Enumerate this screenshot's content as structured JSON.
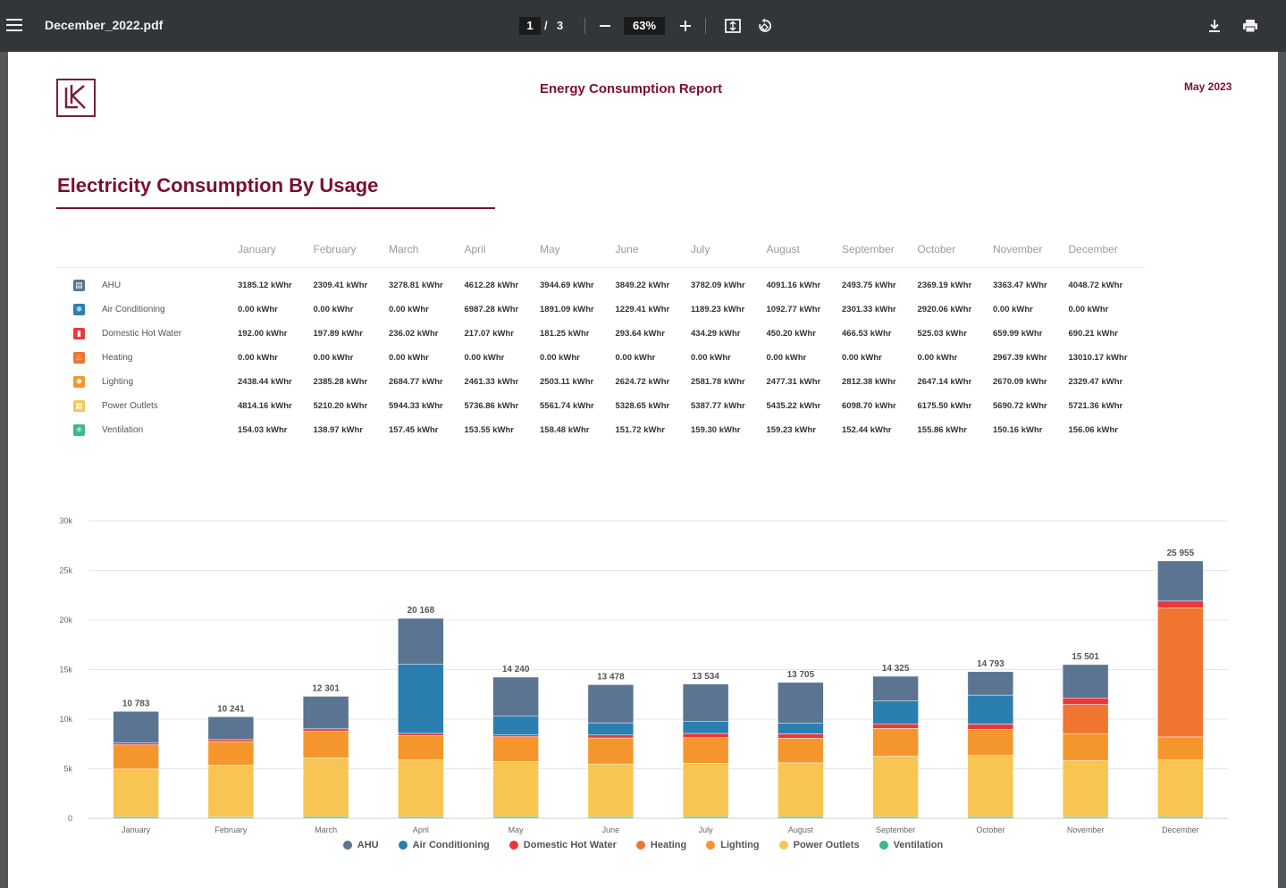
{
  "viewer": {
    "file_name": "December_2022.pdf",
    "current_page": "1",
    "page_sep": "/",
    "total_pages": "3",
    "zoom": "63%",
    "icons": [
      "menu-icon",
      "minus-icon",
      "plus-icon",
      "fit-page-icon",
      "rotate-icon",
      "download-icon",
      "print-icon"
    ]
  },
  "report": {
    "title": "Energy Consumption Report",
    "date": "May 2023",
    "section_title": "Electricity Consumption By Usage"
  },
  "table": {
    "months": [
      "January",
      "February",
      "March",
      "April",
      "May",
      "June",
      "July",
      "August",
      "September",
      "October",
      "November",
      "December"
    ],
    "rows": [
      {
        "label": "AHU",
        "color": "#5a7492",
        "values": [
          "3185.12 kWhr",
          "2309.41 kWhr",
          "3278.81 kWhr",
          "4612.28 kWhr",
          "3944.69 kWhr",
          "3849.22 kWhr",
          "3782.09 kWhr",
          "4091.16 kWhr",
          "2493.75 kWhr",
          "2369.19 kWhr",
          "3363.47 kWhr",
          "4048.72 kWhr"
        ]
      },
      {
        "label": "Air Conditioning",
        "color": "#2a7fb0",
        "values": [
          "0.00 kWhr",
          "0.00 kWhr",
          "0.00 kWhr",
          "6987.28 kWhr",
          "1891.09 kWhr",
          "1229.41 kWhr",
          "1189.23 kWhr",
          "1092.77 kWhr",
          "2301.33 kWhr",
          "2920.06 kWhr",
          "0.00 kWhr",
          "0.00 kWhr"
        ]
      },
      {
        "label": "Domestic Hot Water",
        "color": "#e8383b",
        "values": [
          "192.00 kWhr",
          "197.89 kWhr",
          "236.02 kWhr",
          "217.07 kWhr",
          "181.25 kWhr",
          "293.64 kWhr",
          "434.29 kWhr",
          "450.20 kWhr",
          "466.53 kWhr",
          "525.03 kWhr",
          "659.99 kWhr",
          "690.21 kWhr"
        ]
      },
      {
        "label": "Heating",
        "color": "#f07530",
        "values": [
          "0.00 kWhr",
          "0.00 kWhr",
          "0.00 kWhr",
          "0.00 kWhr",
          "0.00 kWhr",
          "0.00 kWhr",
          "0.00 kWhr",
          "0.00 kWhr",
          "0.00 kWhr",
          "0.00 kWhr",
          "2967.39 kWhr",
          "13010.17 kWhr"
        ]
      },
      {
        "label": "Lighting",
        "color": "#f5962c",
        "values": [
          "2438.44 kWhr",
          "2385.28 kWhr",
          "2684.77 kWhr",
          "2461.33 kWhr",
          "2503.11 kWhr",
          "2624.72 kWhr",
          "2581.78 kWhr",
          "2477.31 kWhr",
          "2812.38 kWhr",
          "2647.14 kWhr",
          "2670.09 kWhr",
          "2329.47 kWhr"
        ]
      },
      {
        "label": "Power Outlets",
        "color": "#f8c553",
        "values": [
          "4814.16 kWhr",
          "5210.20 kWhr",
          "5944.33 kWhr",
          "5736.86 kWhr",
          "5561.74 kWhr",
          "5328.65 kWhr",
          "5387.77 kWhr",
          "5435.22 kWhr",
          "6098.70 kWhr",
          "6175.50 kWhr",
          "5690.72 kWhr",
          "5721.36 kWhr"
        ]
      },
      {
        "label": "Ventilation",
        "color": "#3db88a",
        "values": [
          "154.03 kWhr",
          "138.97 kWhr",
          "157.45 kWhr",
          "153.55 kWhr",
          "158.48 kWhr",
          "151.72 kWhr",
          "159.30 kWhr",
          "159.23 kWhr",
          "152.44 kWhr",
          "155.86 kWhr",
          "150.16 kWhr",
          "156.06 kWhr"
        ]
      }
    ]
  },
  "chart_data": {
    "type": "bar",
    "stacked": true,
    "categories": [
      "January",
      "February",
      "March",
      "April",
      "May",
      "June",
      "July",
      "August",
      "September",
      "October",
      "November",
      "December"
    ],
    "ylim": [
      0,
      30000
    ],
    "yticks": [
      "0",
      "5k",
      "10k",
      "15k",
      "20k",
      "25k",
      "30k"
    ],
    "totals": [
      "10 783",
      "10 241",
      "12 301",
      "20 168",
      "14 240",
      "13 478",
      "13 534",
      "13 705",
      "14 325",
      "14 793",
      "15 501",
      "25 955"
    ],
    "grid": true,
    "legend_position": "bottom",
    "series": [
      {
        "name": "Ventilation",
        "color": "#3db88a",
        "values": [
          154.03,
          138.97,
          157.45,
          153.55,
          158.48,
          151.72,
          159.3,
          159.23,
          152.44,
          155.86,
          150.16,
          156.06
        ]
      },
      {
        "name": "Power Outlets",
        "color": "#f8c553",
        "values": [
          4814.16,
          5210.2,
          5944.33,
          5736.86,
          5561.74,
          5328.65,
          5387.77,
          5435.22,
          6098.7,
          6175.5,
          5690.72,
          5721.36
        ]
      },
      {
        "name": "Lighting",
        "color": "#f5962c",
        "values": [
          2438.44,
          2385.28,
          2684.77,
          2461.33,
          2503.11,
          2624.72,
          2581.78,
          2477.31,
          2812.38,
          2647.14,
          2670.09,
          2329.47
        ]
      },
      {
        "name": "Heating",
        "color": "#f07530",
        "values": [
          0,
          0,
          0,
          0,
          0,
          0,
          0,
          0,
          0,
          0,
          2967.39,
          13010.17
        ]
      },
      {
        "name": "Domestic Hot Water",
        "color": "#e8383b",
        "values": [
          192.0,
          197.89,
          236.02,
          217.07,
          181.25,
          293.64,
          434.29,
          450.2,
          466.53,
          525.03,
          659.99,
          690.21
        ]
      },
      {
        "name": "Air Conditioning",
        "color": "#2a7fb0",
        "values": [
          0,
          0,
          0,
          6987.28,
          1891.09,
          1229.41,
          1189.23,
          1092.77,
          2301.33,
          2920.06,
          0,
          0
        ]
      },
      {
        "name": "AHU",
        "color": "#5a7492",
        "values": [
          3185.12,
          2309.41,
          3278.81,
          4612.28,
          3944.69,
          3849.22,
          3782.09,
          4091.16,
          2493.75,
          2369.19,
          3363.47,
          4048.72
        ]
      }
    ],
    "legend": [
      "AHU",
      "Air Conditioning",
      "Domestic Hot Water",
      "Heating",
      "Lighting",
      "Power Outlets",
      "Ventilation"
    ]
  }
}
